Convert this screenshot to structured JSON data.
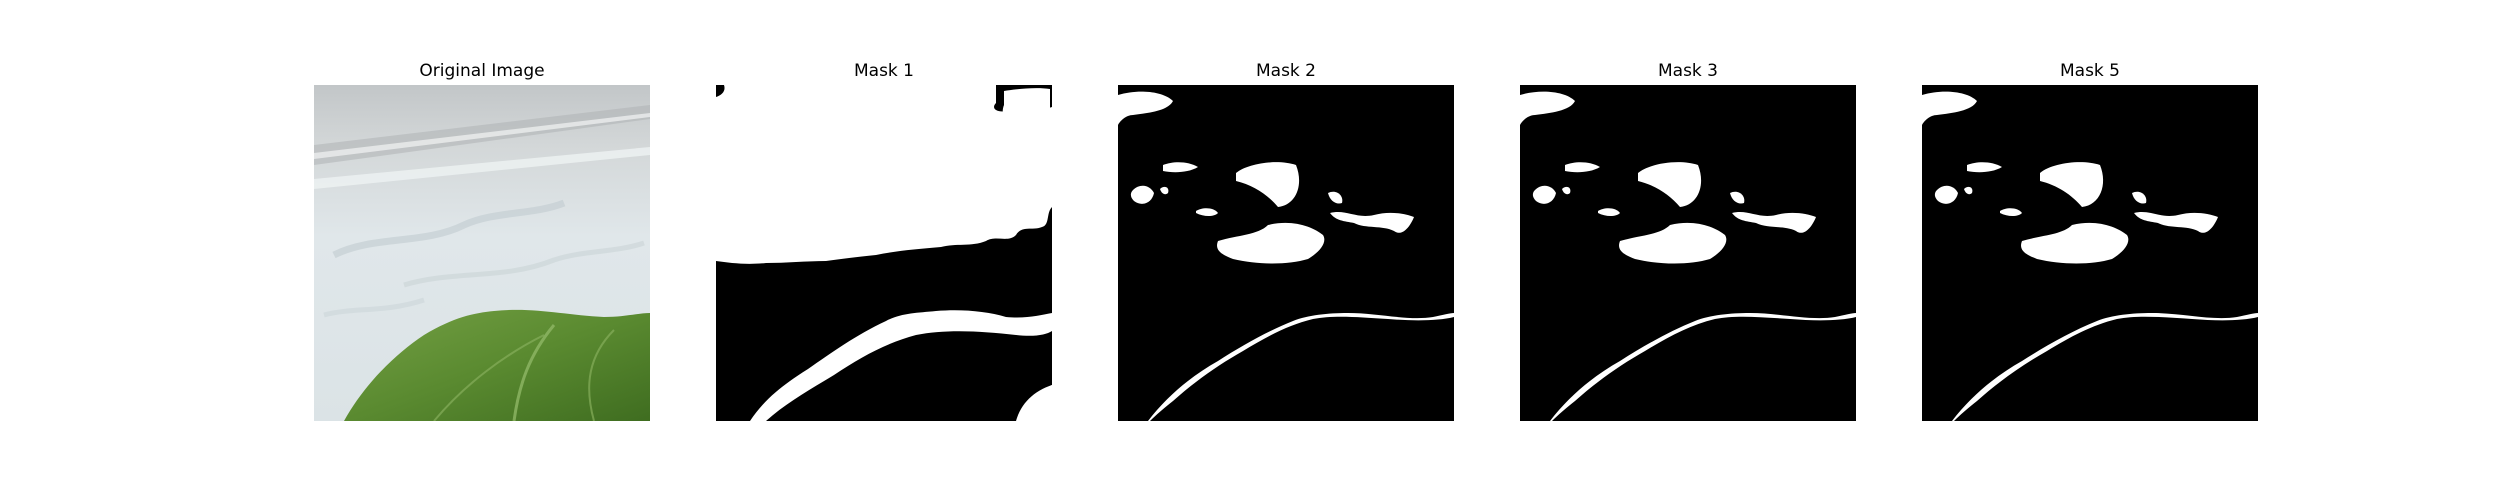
{
  "panels": [
    {
      "title": "Original Image"
    },
    {
      "title": "Mask 1"
    },
    {
      "title": "Mask 2"
    },
    {
      "title": "Mask 3"
    },
    {
      "title": "Mask 5"
    }
  ],
  "colors": {
    "mask_background": "#000000",
    "mask_foreground": "#ffffff",
    "surface_light": "#e8ecee",
    "surface_mid": "#c9d2d5",
    "leaf_green": "#5c8a34",
    "leaf_dark": "#3d6a1f"
  }
}
